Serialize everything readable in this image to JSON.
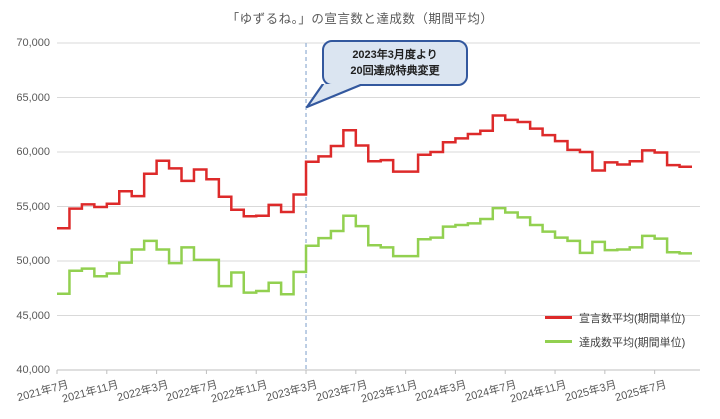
{
  "chart_data": {
    "type": "line",
    "step": true,
    "title": "「ゆずるね。」の宣言数と達成数（期間平均）",
    "ylim": [
      40000,
      70000
    ],
    "grid": "horizontal",
    "legend_position": "bottom-right",
    "y_ticks": [
      {
        "label": "70,000",
        "value": 70000
      },
      {
        "label": "65,000",
        "value": 65000
      },
      {
        "label": "60,000",
        "value": 60000
      },
      {
        "label": "55,000",
        "value": 55000
      },
      {
        "label": "50,000",
        "value": 50000
      },
      {
        "label": "45,000",
        "value": 45000
      },
      {
        "label": "40,000",
        "value": 40000
      }
    ],
    "x_tick_labels": [
      {
        "label": "2021年7月",
        "month_index": 0
      },
      {
        "label": "2021年11月",
        "month_index": 4
      },
      {
        "label": "2022年3月",
        "month_index": 8
      },
      {
        "label": "2022年7月",
        "month_index": 12
      },
      {
        "label": "2022年11月",
        "month_index": 16
      },
      {
        "label": "2023年3月",
        "month_index": 20
      },
      {
        "label": "2023年7月",
        "month_index": 24
      },
      {
        "label": "2023年11月",
        "month_index": 28
      },
      {
        "label": "2024年3月",
        "month_index": 32
      },
      {
        "label": "2024年7月",
        "month_index": 36
      },
      {
        "label": "2024年11月",
        "month_index": 40
      },
      {
        "label": "2025年3月",
        "month_index": 44
      },
      {
        "label": "2025年7月",
        "month_index": 48
      }
    ],
    "months": [
      "2021-07",
      "2021-08",
      "2021-09",
      "2021-10",
      "2021-11",
      "2021-12",
      "2022-01",
      "2022-02",
      "2022-03",
      "2022-04",
      "2022-05",
      "2022-06",
      "2022-07",
      "2022-08",
      "2022-09",
      "2022-10",
      "2022-11",
      "2022-12",
      "2023-01",
      "2023-02",
      "2023-03",
      "2023-04",
      "2023-05",
      "2023-06",
      "2023-07",
      "2023-08",
      "2023-09",
      "2023-10",
      "2023-11",
      "2023-12",
      "2024-01",
      "2024-02",
      "2024-03",
      "2024-04",
      "2024-05",
      "2024-06",
      "2024-07",
      "2024-08",
      "2024-09",
      "2024-10",
      "2024-11",
      "2024-12",
      "2025-01",
      "2025-02",
      "2025-03",
      "2025-04",
      "2025-05",
      "2025-06",
      "2025-07",
      "2025-08",
      "2025-09"
    ],
    "series": [
      {
        "name": "宣言数平均(期間単位)",
        "color": "#dd2a2a",
        "values": [
          53000,
          54800,
          55200,
          54950,
          55250,
          56400,
          55950,
          58000,
          59200,
          58500,
          57350,
          58400,
          57500,
          55900,
          54700,
          54100,
          54150,
          55150,
          54500,
          56100,
          59100,
          59600,
          60550,
          62000,
          60600,
          59150,
          59250,
          58200,
          58200,
          59750,
          60000,
          60900,
          61250,
          61650,
          61950,
          63350,
          62950,
          62750,
          62150,
          61550,
          61000,
          60200,
          60000,
          58300,
          59050,
          58850,
          59150,
          60150,
          59950,
          58800,
          58650
        ]
      },
      {
        "name": "達成数平均(期間単位)",
        "color": "#92d050",
        "values": [
          47000,
          49100,
          49300,
          48600,
          48850,
          49850,
          51050,
          51850,
          51050,
          49800,
          51250,
          50100,
          50100,
          47700,
          48950,
          47100,
          47250,
          48000,
          46950,
          49000,
          51400,
          52100,
          52750,
          54150,
          53200,
          51450,
          51250,
          50450,
          50450,
          52000,
          52150,
          53150,
          53300,
          53450,
          53850,
          54850,
          54450,
          54000,
          53300,
          52700,
          52150,
          51850,
          50750,
          51750,
          51000,
          51050,
          51250,
          52300,
          52050,
          50800,
          50700
        ]
      }
    ],
    "event_line": {
      "month": "2023-03",
      "month_index": 20,
      "color": "#9ab4d6",
      "style": "dashed"
    },
    "annotation": {
      "line1": "2023年3月度より",
      "line2": "20回達成特典変更",
      "fill": "#dbe5f1",
      "border": "#33589e"
    }
  }
}
